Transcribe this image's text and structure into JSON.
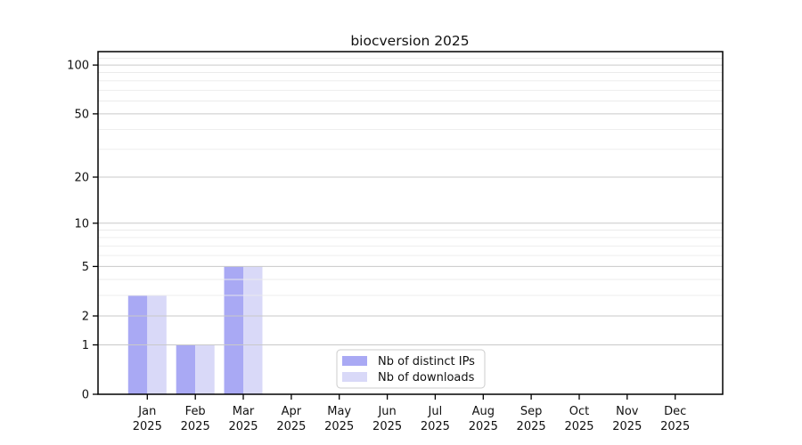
{
  "chart_data": {
    "type": "bar",
    "title": "biocversion 2025",
    "categories": [
      "Jan",
      "Feb",
      "Mar",
      "Apr",
      "May",
      "Jun",
      "Jul",
      "Aug",
      "Sep",
      "Oct",
      "Nov",
      "Dec"
    ],
    "year_label": "2025",
    "series": [
      {
        "name": "Nb of distinct IPs",
        "color": "#a9a9f4",
        "values": [
          3,
          1,
          5,
          0,
          0,
          0,
          0,
          0,
          0,
          0,
          0,
          0
        ]
      },
      {
        "name": "Nb of downloads",
        "color": "#d9d9f8",
        "values": [
          3,
          1,
          5,
          0,
          0,
          0,
          0,
          0,
          0,
          0,
          0,
          0
        ]
      }
    ],
    "yscale": "log1p",
    "yticks": [
      0,
      1,
      2,
      5,
      10,
      20,
      50,
      100
    ],
    "minor_gridlines": [
      3,
      4,
      6,
      7,
      8,
      9,
      30,
      40,
      60,
      70,
      80,
      90,
      110
    ],
    "ymax": 121,
    "xlabel": "",
    "ylabel": "",
    "grid": true,
    "legend_position": "bottom-center",
    "colors": {
      "major_grid": "#c9c9c9",
      "minor_grid": "#ebebeb",
      "axis": "#000000",
      "text": "#111111",
      "legend_border": "#cccccc",
      "legend_bg": "#ffffff"
    }
  }
}
